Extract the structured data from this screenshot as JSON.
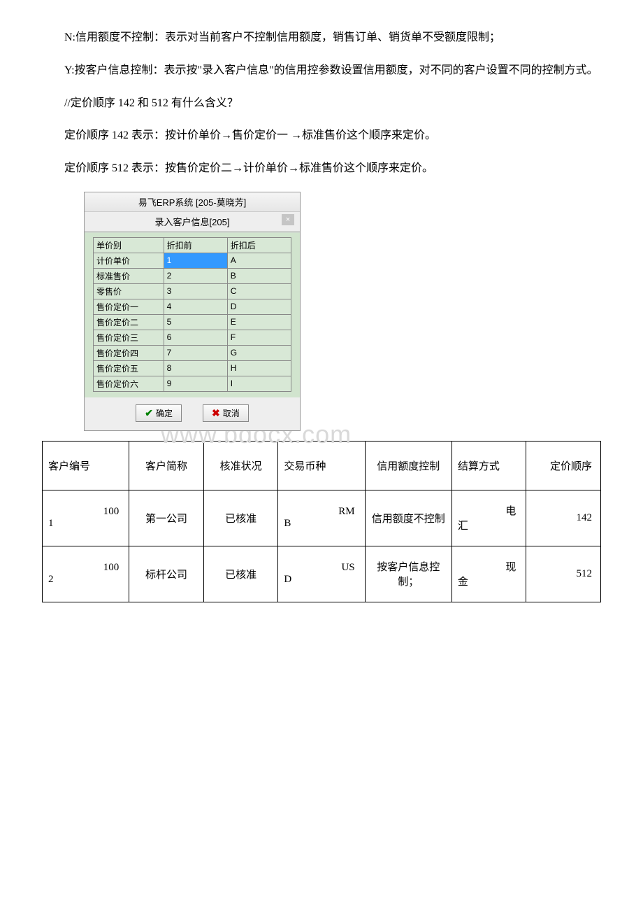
{
  "paragraphs": {
    "p1": "N:信用额度不控制：表示对当前客户不控制信用额度，销售订单、销货单不受额度限制；",
    "p2a": "Y:按客户信息控制：表示按",
    "p2q": "\"录入客户信息\"",
    "p2b": "的信用控参数设置信用额度，对不同的客户设置不同的控制方式。",
    "p3": "//定价顺序 142 和 512 有什么含义？",
    "p4": "定价顺序 142 表示：按计价单价→售价定价一 →标准售价这个顺序来定价。",
    "p5": "定价顺序 512 表示：按售价定价二→计价单价→标准售价这个顺序来定价。"
  },
  "erp": {
    "title": "易飞ERP系统 [205-莫晓芳]",
    "tab": "录入客户信息[205]",
    "headers": {
      "c1": "单价别",
      "c2": "折扣前",
      "c3": "折扣后"
    },
    "rows": [
      {
        "name": "计价单价",
        "before": "1",
        "after": "A",
        "selected": true
      },
      {
        "name": "标准售价",
        "before": "2",
        "after": "B"
      },
      {
        "name": "零售价",
        "before": "3",
        "after": "C"
      },
      {
        "name": "售价定价一",
        "before": "4",
        "after": "D"
      },
      {
        "name": "售价定价二",
        "before": "5",
        "after": "E"
      },
      {
        "name": "售价定价三",
        "before": "6",
        "after": "F"
      },
      {
        "name": "售价定价四",
        "before": "7",
        "after": "G"
      },
      {
        "name": "售价定价五",
        "before": "8",
        "after": "H"
      },
      {
        "name": "售价定价六",
        "before": "9",
        "after": "I"
      }
    ],
    "ok": "确定",
    "cancel": "取消"
  },
  "watermark": "www.bdocx.com",
  "customerTable": {
    "headers": {
      "id": "客户编号",
      "name": "客户简称",
      "status": "核准状况",
      "currency": "交易币种",
      "credit": "信用额度控制",
      "settlement": "结算方式",
      "priceorder": "定价顺序"
    },
    "rows": [
      {
        "idTop": "100",
        "idBot": "1",
        "name": "第一公司",
        "status": "已核准",
        "curTop": "RM",
        "curBot": "B",
        "credit": "信用额度不控制",
        "settleTop": "电",
        "settleBot": "汇",
        "price": "142"
      },
      {
        "idTop": "100",
        "idBot": "2",
        "name": "标杆公司",
        "status": "已核准",
        "curTop": "US",
        "curBot": "D",
        "credit": "按客户信息控制；",
        "settleTop": "现",
        "settleBot": "金",
        "price": "512"
      }
    ]
  }
}
